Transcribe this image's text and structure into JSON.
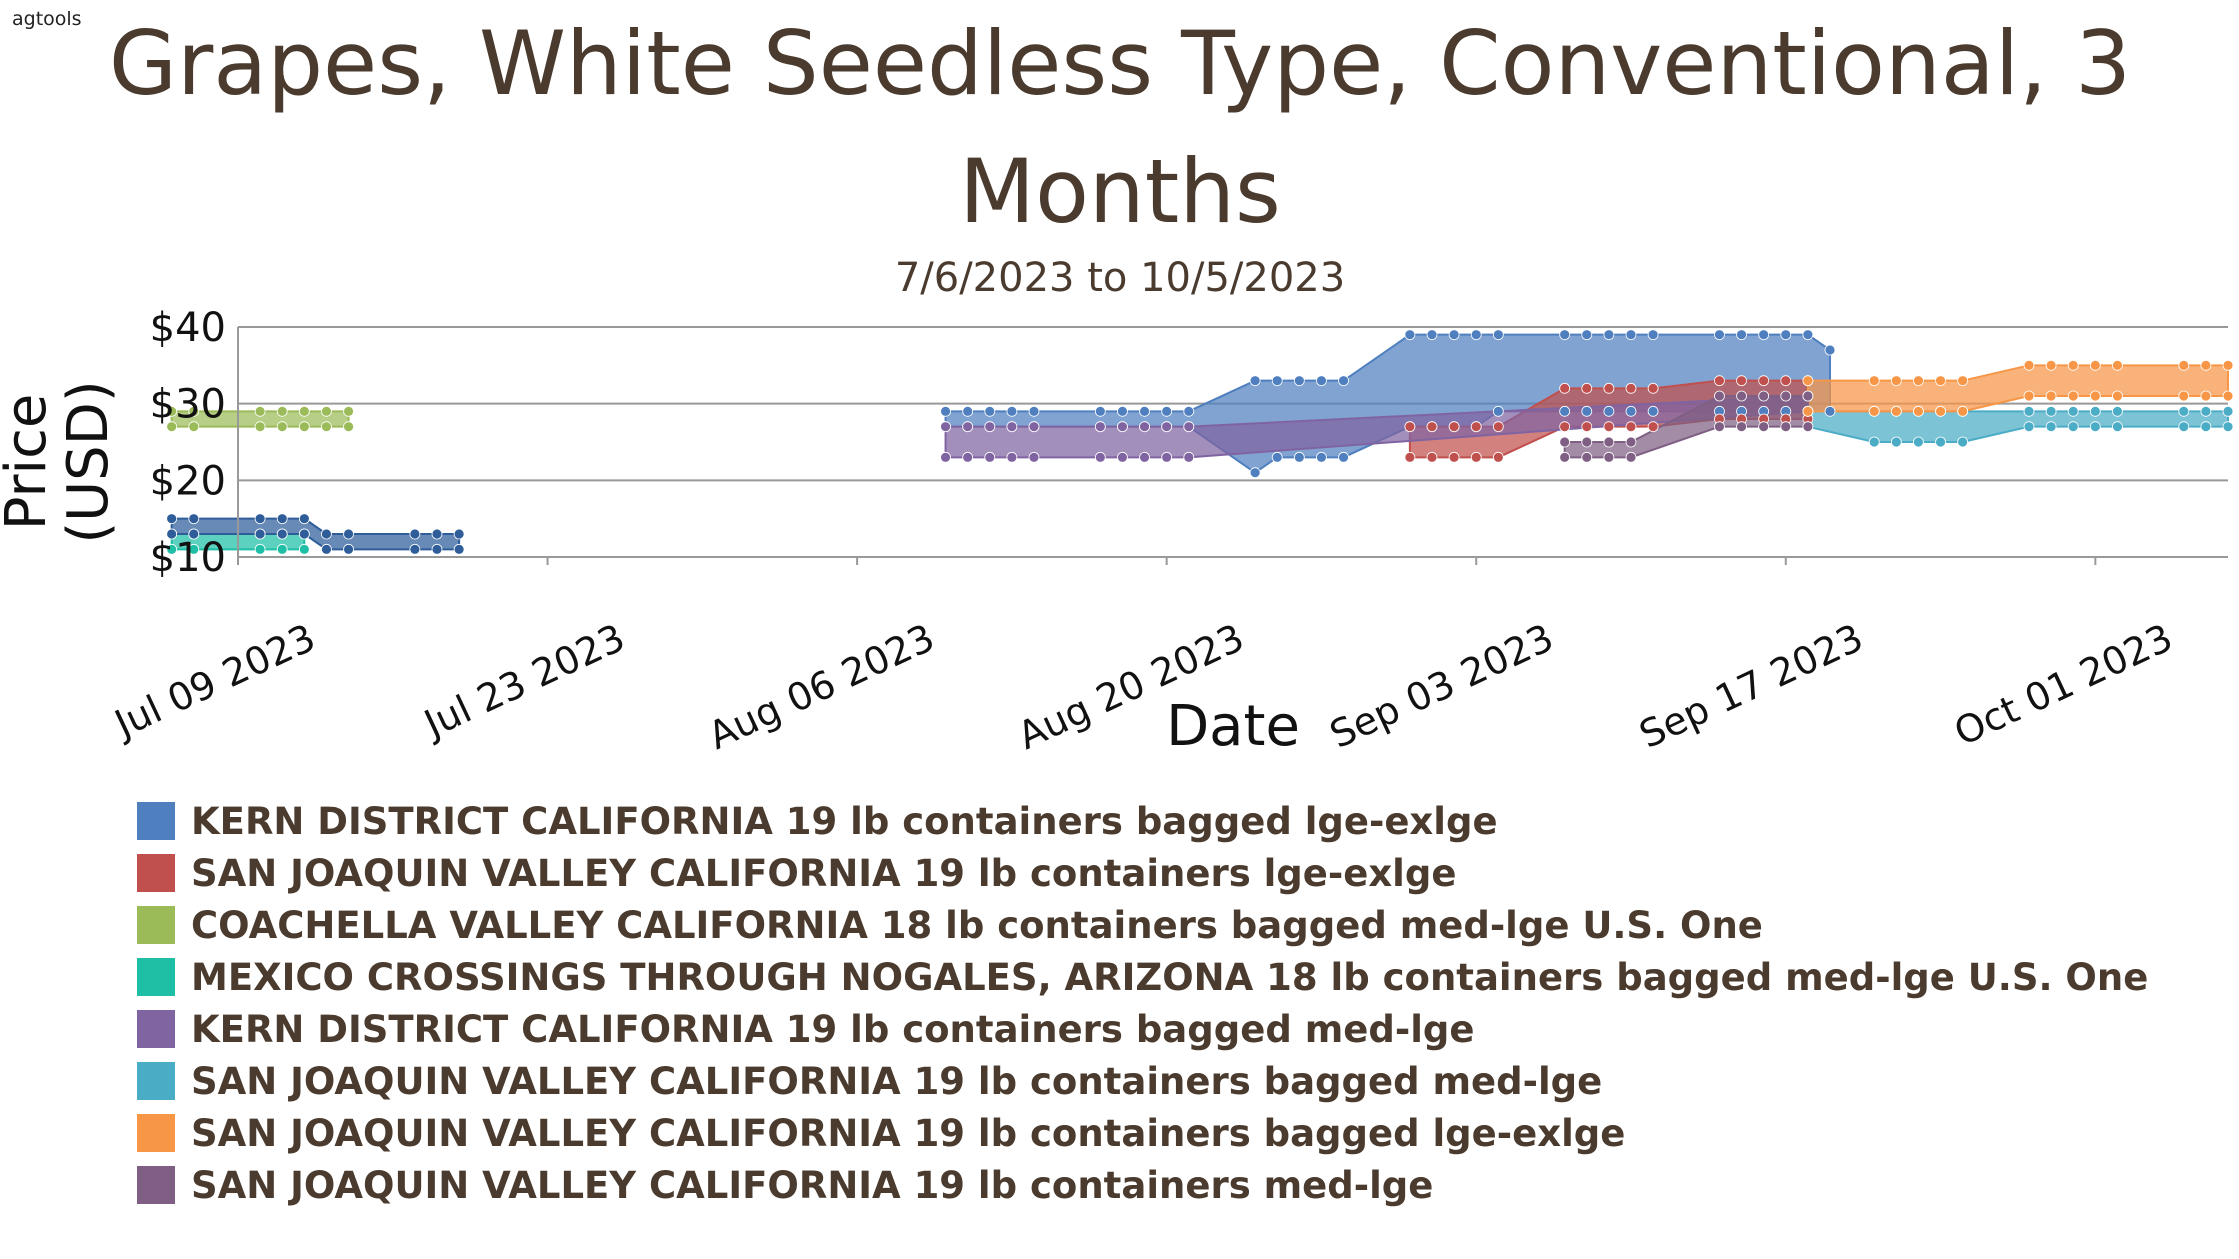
{
  "brand": "agtools",
  "title": "Grapes, White Seedless Type, Conventional, 3 Months",
  "subtitle": "7/6/2023 to 10/5/2023",
  "chart_data": {
    "type": "area",
    "title": "Grapes, White Seedless Type, Conventional, 3 Months",
    "subtitle": "7/6/2023 to 10/5/2023",
    "xlabel": "Date",
    "ylabel": "Price (USD)",
    "xlim": [
      "2023-07-09",
      "2023-10-07"
    ],
    "ylim": [
      10,
      40
    ],
    "yticks": [
      10,
      20,
      30,
      40
    ],
    "ytick_labels": [
      "$10",
      "$20",
      "$30",
      "$40"
    ],
    "xticks": [
      "2023-07-09",
      "2023-07-23",
      "2023-08-06",
      "2023-08-20",
      "2023-09-03",
      "2023-09-17",
      "2023-10-01"
    ],
    "xtick_labels": [
      "Jul 09 2023",
      "Jul 23 2023",
      "Aug 06 2023",
      "Aug 20 2023",
      "Sep 03 2023",
      "Sep 17 2023",
      "Oct 01 2023"
    ],
    "grid": true,
    "legend_position": "bottom",
    "series": [
      {
        "name": "KERN DISTRICT CALIFORNIA 19 lb containers bagged lge-exlge",
        "color": "#4f7fbf",
        "dates": [
          "2023-08-10",
          "2023-08-11",
          "2023-08-12",
          "2023-08-13",
          "2023-08-14",
          "2023-08-17",
          "2023-08-18",
          "2023-08-19",
          "2023-08-20",
          "2023-08-21",
          "2023-08-24",
          "2023-08-25",
          "2023-08-26",
          "2023-08-27",
          "2023-08-28",
          "2023-08-31",
          "2023-09-01",
          "2023-09-02",
          "2023-09-03",
          "2023-09-04",
          "2023-09-07",
          "2023-09-08",
          "2023-09-09",
          "2023-09-10",
          "2023-09-11",
          "2023-09-14",
          "2023-09-15",
          "2023-09-16",
          "2023-09-17",
          "2023-09-18",
          "2023-09-19"
        ],
        "high": [
          29,
          29,
          29,
          29,
          29,
          29,
          29,
          29,
          29,
          29,
          33,
          33,
          33,
          33,
          33,
          39,
          39,
          39,
          39,
          39,
          39,
          39,
          39,
          39,
          39,
          39,
          39,
          39,
          39,
          39,
          37
        ],
        "low": [
          27,
          27,
          27,
          27,
          27,
          27,
          27,
          27,
          27,
          27,
          21,
          23,
          23,
          23,
          23,
          27,
          27,
          27,
          27,
          29,
          29,
          29,
          29,
          29,
          29,
          29,
          29,
          29,
          29,
          29,
          29
        ]
      },
      {
        "name": "SAN JOAQUIN VALLEY CALIFORNIA 19 lb containers lge-exlge",
        "color": "#c0504d",
        "dates": [
          "2023-08-31",
          "2023-09-01",
          "2023-09-02",
          "2023-09-03",
          "2023-09-04",
          "2023-09-07",
          "2023-09-08",
          "2023-09-09",
          "2023-09-10",
          "2023-09-11",
          "2023-09-14",
          "2023-09-15",
          "2023-09-16",
          "2023-09-17",
          "2023-09-18"
        ],
        "high": [
          27,
          27,
          27,
          27,
          27,
          32,
          32,
          32,
          32,
          32,
          33,
          33,
          33,
          33,
          33
        ],
        "low": [
          23,
          23,
          23,
          23,
          23,
          27,
          27,
          27,
          27,
          27,
          28,
          28,
          28,
          28,
          28
        ]
      },
      {
        "name": "COACHELLA VALLEY CALIFORNIA 18 lb containers bagged med-lge U.S. One",
        "color": "#9bbb59",
        "dates": [
          "2023-07-06",
          "2023-07-07",
          "2023-07-10",
          "2023-07-11",
          "2023-07-12",
          "2023-07-13",
          "2023-07-14"
        ],
        "high": [
          29,
          29,
          29,
          29,
          29,
          29,
          29
        ],
        "low": [
          27,
          27,
          27,
          27,
          27,
          27,
          27
        ]
      },
      {
        "name": "MEXICO CROSSINGS THROUGH NOGALES, ARIZONA 18 lb containers bagged med-lge U.S. One",
        "color": "#1fbfa6",
        "dates": [
          "2023-07-06",
          "2023-07-07",
          "2023-07-10",
          "2023-07-11",
          "2023-07-12"
        ],
        "high": [
          13,
          13,
          13,
          13,
          13
        ],
        "low": [
          11,
          11,
          11,
          11,
          11
        ]
      },
      {
        "name": "KERN DISTRICT CALIFORNIA 19 lb containers bagged med-lge",
        "color": "#8064a2",
        "dates": [
          "2023-08-10",
          "2023-08-11",
          "2023-08-12",
          "2023-08-13",
          "2023-08-14",
          "2023-08-17",
          "2023-08-18",
          "2023-08-19",
          "2023-08-20",
          "2023-08-21",
          "2023-09-18"
        ],
        "high": [
          27,
          27,
          27,
          27,
          27,
          27,
          27,
          27,
          27,
          27,
          31
        ],
        "low": [
          23,
          23,
          23,
          23,
          23,
          23,
          23,
          23,
          23,
          23,
          29
        ]
      },
      {
        "name": "SAN JOAQUIN VALLEY CALIFORNIA 19 lb containers bagged med-lge",
        "color": "#4bacc6",
        "dates": [
          "2023-09-18",
          "2023-09-21",
          "2023-09-22",
          "2023-09-23",
          "2023-09-24",
          "2023-09-25",
          "2023-09-28",
          "2023-09-29",
          "2023-09-30",
          "2023-10-01",
          "2023-10-02",
          "2023-10-05",
          "2023-10-06",
          "2023-10-07"
        ],
        "high": [
          29,
          29,
          29,
          29,
          29,
          29,
          29,
          29,
          29,
          29,
          29,
          29,
          29,
          29
        ],
        "low": [
          27,
          25,
          25,
          25,
          25,
          25,
          27,
          27,
          27,
          27,
          27,
          27,
          27,
          27
        ]
      },
      {
        "name": "SAN JOAQUIN VALLEY CALIFORNIA 19 lb containers bagged lge-exlge",
        "color": "#f79646",
        "dates": [
          "2023-09-18",
          "2023-09-21",
          "2023-09-22",
          "2023-09-23",
          "2023-09-24",
          "2023-09-25",
          "2023-09-28",
          "2023-09-29",
          "2023-09-30",
          "2023-10-01",
          "2023-10-02",
          "2023-10-05",
          "2023-10-06",
          "2023-10-07"
        ],
        "high": [
          33,
          33,
          33,
          33,
          33,
          33,
          35,
          35,
          35,
          35,
          35,
          35,
          35,
          35
        ],
        "low": [
          29,
          29,
          29,
          29,
          29,
          29,
          31,
          31,
          31,
          31,
          31,
          31,
          31,
          31
        ]
      },
      {
        "name": "SAN JOAQUIN VALLEY CALIFORNIA 19 lb containers med-lge",
        "color": "#7f6084",
        "dates": [
          "2023-09-07",
          "2023-09-08",
          "2023-09-09",
          "2023-09-10",
          "2023-09-14",
          "2023-09-15",
          "2023-09-16",
          "2023-09-17",
          "2023-09-18"
        ],
        "high": [
          25,
          25,
          25,
          25,
          31,
          31,
          31,
          31,
          31
        ],
        "low": [
          23,
          23,
          23,
          23,
          27,
          27,
          27,
          27,
          27
        ]
      },
      {
        "name": "",
        "color": "#2e5d9a",
        "dates": [
          "2023-07-06",
          "2023-07-07",
          "2023-07-10",
          "2023-07-11",
          "2023-07-12",
          "2023-07-13",
          "2023-07-14",
          "2023-07-17",
          "2023-07-18",
          "2023-07-19"
        ],
        "high": [
          15,
          15,
          15,
          15,
          15,
          13,
          13,
          13,
          13,
          13
        ],
        "low": [
          13,
          13,
          13,
          13,
          13,
          11,
          11,
          11,
          11,
          11
        ]
      }
    ]
  }
}
